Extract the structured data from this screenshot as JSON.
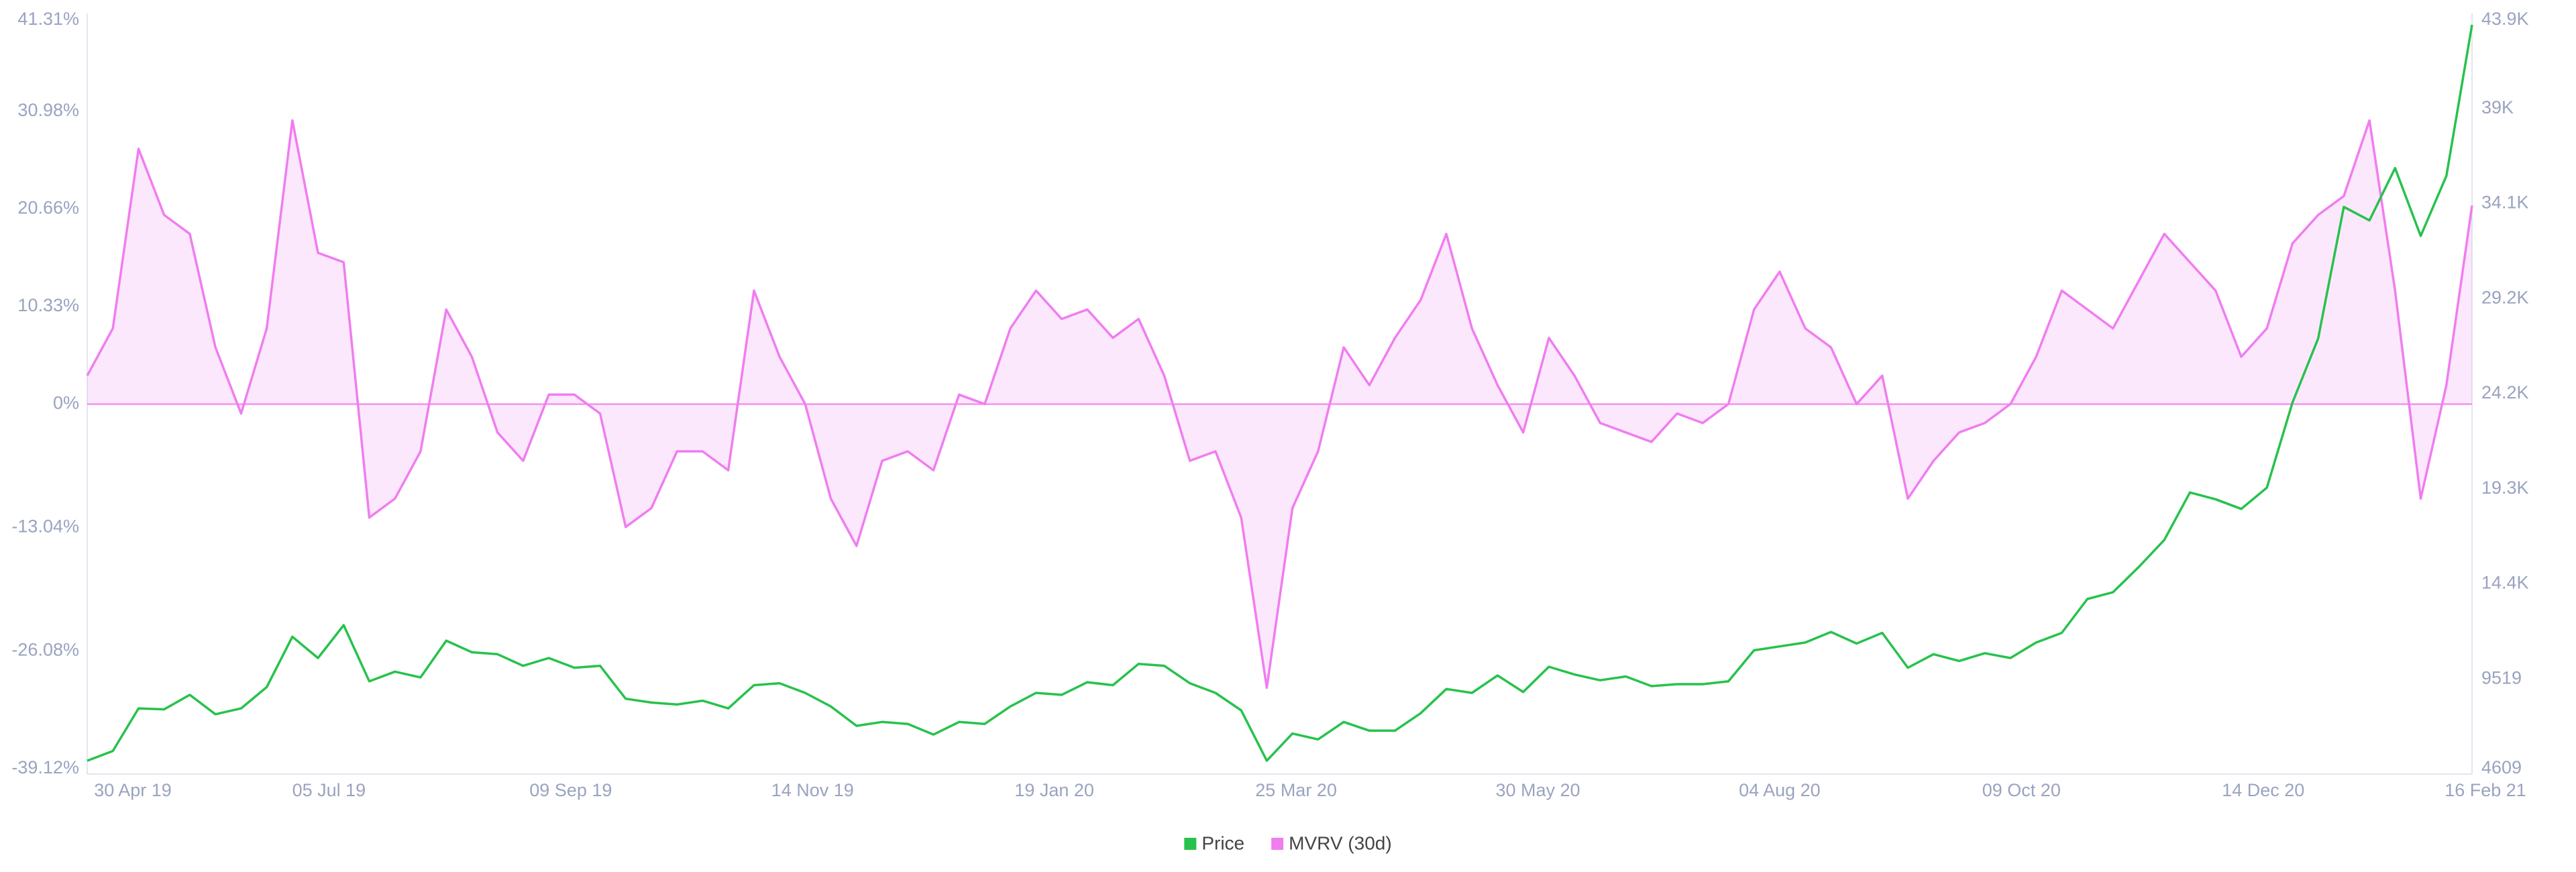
{
  "chart_data": {
    "type": "line",
    "x": [
      "2019-04-30",
      "2019-05-07",
      "2019-05-14",
      "2019-05-21",
      "2019-05-28",
      "2019-06-04",
      "2019-06-11",
      "2019-06-18",
      "2019-06-25",
      "2019-07-02",
      "2019-07-09",
      "2019-07-16",
      "2019-07-23",
      "2019-07-30",
      "2019-08-06",
      "2019-08-13",
      "2019-08-20",
      "2019-08-27",
      "2019-09-03",
      "2019-09-10",
      "2019-09-17",
      "2019-09-24",
      "2019-10-01",
      "2019-10-08",
      "2019-10-15",
      "2019-10-22",
      "2019-10-29",
      "2019-11-05",
      "2019-11-12",
      "2019-11-19",
      "2019-11-26",
      "2019-12-03",
      "2019-12-10",
      "2019-12-17",
      "2019-12-24",
      "2019-12-31",
      "2020-01-07",
      "2020-01-14",
      "2020-01-21",
      "2020-01-28",
      "2020-02-04",
      "2020-02-11",
      "2020-02-18",
      "2020-02-25",
      "2020-03-03",
      "2020-03-10",
      "2020-03-17",
      "2020-03-24",
      "2020-03-31",
      "2020-04-07",
      "2020-04-14",
      "2020-04-21",
      "2020-04-28",
      "2020-05-05",
      "2020-05-12",
      "2020-05-19",
      "2020-05-26",
      "2020-06-02",
      "2020-06-09",
      "2020-06-16",
      "2020-06-23",
      "2020-06-30",
      "2020-07-07",
      "2020-07-14",
      "2020-07-21",
      "2020-07-28",
      "2020-08-04",
      "2020-08-11",
      "2020-08-18",
      "2020-08-25",
      "2020-09-01",
      "2020-09-08",
      "2020-09-15",
      "2020-09-22",
      "2020-09-29",
      "2020-10-06",
      "2020-10-13",
      "2020-10-20",
      "2020-10-27",
      "2020-11-03",
      "2020-11-10",
      "2020-11-17",
      "2020-11-24",
      "2020-12-01",
      "2020-12-08",
      "2020-12-15",
      "2020-12-22",
      "2020-12-29",
      "2021-01-05",
      "2021-01-12",
      "2021-01-19",
      "2021-01-26",
      "2021-02-02",
      "2021-02-09"
    ],
    "xlim": [
      "2019-04-30",
      "2021-02-09"
    ],
    "xticks": [
      {
        "value": "2019-04-30",
        "label": "30 Apr 19"
      },
      {
        "value": "2019-07-05",
        "label": "05 Jul 19"
      },
      {
        "value": "2019-09-09",
        "label": "09 Sep 19"
      },
      {
        "value": "2019-11-14",
        "label": "14 Nov 19"
      },
      {
        "value": "2020-01-19",
        "label": "19 Jan 20"
      },
      {
        "value": "2020-03-25",
        "label": "25 Mar 20"
      },
      {
        "value": "2020-05-30",
        "label": "30 May 20"
      },
      {
        "value": "2020-08-04",
        "label": "04 Aug 20"
      },
      {
        "value": "2020-10-09",
        "label": "09 Oct 20"
      },
      {
        "value": "2020-12-14",
        "label": "14 Dec 20"
      },
      {
        "value": "2021-02-16",
        "label": "16 Feb 21"
      }
    ],
    "ylim": [
      -39.12,
      41.31
    ],
    "yticks": [
      {
        "value": -39.12,
        "label": "-39.12%"
      },
      {
        "value": -26.08,
        "label": "-26.08%"
      },
      {
        "value": -13.04,
        "label": "-13.04%"
      },
      {
        "value": 0,
        "label": "0%"
      },
      {
        "value": 10.33,
        "label": "10.33%"
      },
      {
        "value": 20.66,
        "label": "20.66%"
      },
      {
        "value": 30.98,
        "label": "30.98%"
      },
      {
        "value": 41.31,
        "label": "41.31%"
      }
    ],
    "y2lim": [
      4609,
      43889
    ],
    "y2ticks": [
      4609,
      9519,
      {
        "value": 14429,
        "label": "14.4K"
      },
      {
        "value": 19339,
        "label": "19.3K"
      },
      {
        "value": 24249,
        "label": "24.2K"
      },
      {
        "value": 29159,
        "label": "29.2K"
      },
      {
        "value": 34069,
        "label": "34.1K"
      },
      {
        "value": 38979,
        "label": "39K"
      },
      {
        "value": 43889,
        "label": "43.9K"
      }
    ],
    "grid": false,
    "legend": "bottom",
    "series": [
      {
        "name": "Price",
        "color": "#27c24c",
        "axis": "y2",
        "values": [
          5300,
          5800,
          8000,
          7950,
          8700,
          7700,
          8000,
          9100,
          11700,
          10600,
          12300,
          9400,
          9900,
          9600,
          11500,
          10900,
          10800,
          10200,
          10600,
          10100,
          10200,
          8500,
          8300,
          8200,
          8400,
          8000,
          9200,
          9300,
          8800,
          8100,
          7100,
          7300,
          7200,
          6650,
          7300,
          7200,
          8100,
          8800,
          8700,
          9350,
          9200,
          10300,
          10200,
          9300,
          8800,
          7900,
          5300,
          6700,
          6400,
          7300,
          6850,
          6850,
          7750,
          9000,
          8800,
          9700,
          8850,
          10150,
          9750,
          9450,
          9650,
          9150,
          9250,
          9250,
          9400,
          11000,
          11200,
          11400,
          11950,
          11350,
          11900,
          10100,
          10800,
          10450,
          10850,
          10600,
          11400,
          11900,
          13650,
          14000,
          15300,
          16700,
          19150,
          18800,
          18300,
          19400,
          23800,
          27100,
          33900,
          33200,
          35900,
          32400,
          35500,
          43300
        ]
      },
      {
        "name": "MVRV (30d)",
        "color": "#f07df0",
        "area": true,
        "values": [
          3,
          8,
          27,
          20,
          18,
          6,
          -1,
          8,
          30,
          16,
          15,
          -12,
          -10,
          -5,
          10,
          5,
          -3,
          -6,
          1,
          1,
          -1,
          -13,
          -11,
          -5,
          -5,
          -7,
          12,
          5,
          0,
          -10,
          -15,
          -6,
          -5,
          -7,
          1,
          0,
          8,
          12,
          9,
          10,
          7,
          9,
          3,
          -6,
          -5,
          -12,
          -30,
          -11,
          -5,
          6,
          2,
          7,
          11,
          18,
          8,
          2,
          -3,
          7,
          3,
          -2,
          -3,
          -4,
          -1,
          -2,
          0,
          10,
          14,
          8,
          6,
          0,
          3,
          -10,
          -6,
          -3,
          -2,
          0,
          5,
          12,
          10,
          8,
          13,
          18,
          15,
          12,
          5,
          8,
          17,
          20,
          22,
          30,
          12,
          -10,
          2,
          21
        ]
      }
    ]
  }
}
